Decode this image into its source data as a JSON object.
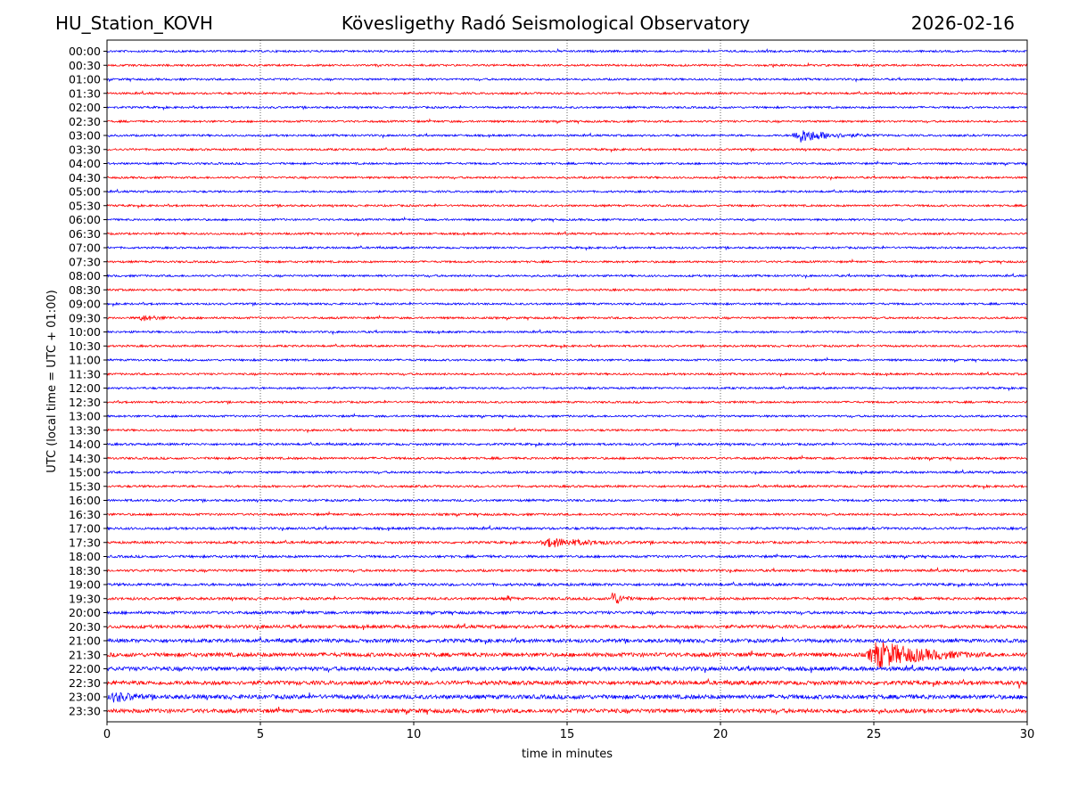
{
  "header": {
    "station": "HU_Station_KOVH",
    "title": "Kövesligethy Radó Seismological Observatory",
    "date": "2026-02-16"
  },
  "chart_data": {
    "type": "line",
    "title": "Kövesligethy Radó Seismological Observatory",
    "xlabel": "time in minutes",
    "ylabel": "UTC (local time = UTC + 01:00)",
    "xlim": [
      0,
      30
    ],
    "xticks": [
      "0",
      "5",
      "10",
      "15",
      "20",
      "25",
      "30"
    ],
    "xtick_values": [
      0,
      5,
      10,
      15,
      20,
      25,
      30
    ],
    "grid_x": [
      5,
      10,
      15,
      20,
      25
    ],
    "series_colors": [
      "#0000ff",
      "#ff0000"
    ],
    "rows": [
      "00:00",
      "00:30",
      "01:00",
      "01:30",
      "02:00",
      "02:30",
      "03:00",
      "03:30",
      "04:00",
      "04:30",
      "05:00",
      "05:30",
      "06:00",
      "06:30",
      "07:00",
      "07:30",
      "08:00",
      "08:30",
      "09:00",
      "09:30",
      "10:00",
      "10:30",
      "11:00",
      "11:30",
      "12:00",
      "12:30",
      "13:00",
      "13:30",
      "14:00",
      "14:30",
      "15:00",
      "15:30",
      "16:00",
      "16:30",
      "17:00",
      "17:30",
      "18:00",
      "18:30",
      "19:00",
      "19:30",
      "20:00",
      "20:30",
      "21:00",
      "21:30",
      "22:00",
      "22:30",
      "23:00",
      "23:30"
    ],
    "noise_level": [
      1,
      1,
      1,
      1,
      1,
      1,
      1,
      1,
      1,
      1,
      1,
      1,
      1,
      1,
      1,
      1,
      1,
      1,
      1,
      1,
      1,
      1,
      1,
      1,
      1,
      1,
      1,
      1,
      1.1,
      1.1,
      1.1,
      1.1,
      1.1,
      1.1,
      1.2,
      1.2,
      1.2,
      1.2,
      1.3,
      1.3,
      1.4,
      1.6,
      1.8,
      2,
      2,
      2,
      2.1,
      2
    ],
    "events": [
      {
        "row": "03:00",
        "minute": 22.3,
        "duration": 3.0,
        "amplitude": 8
      },
      {
        "row": "09:30",
        "minute": 1.0,
        "duration": 1.8,
        "amplitude": 3
      },
      {
        "row": "17:30",
        "minute": 14.1,
        "duration": 4.5,
        "amplitude": 5
      },
      {
        "row": "19:30",
        "minute": 16.4,
        "duration": 1.0,
        "amplitude": 9
      },
      {
        "row": "19:30",
        "minute": 13.0,
        "duration": 0.6,
        "amplitude": 3
      },
      {
        "row": "21:30",
        "minute": 24.7,
        "duration": 5.3,
        "amplitude": 16
      },
      {
        "row": "22:30",
        "minute": 29.7,
        "duration": 0.3,
        "amplitude": 11
      },
      {
        "row": "23:00",
        "minute": 0.0,
        "duration": 3.0,
        "amplitude": 6
      }
    ]
  }
}
